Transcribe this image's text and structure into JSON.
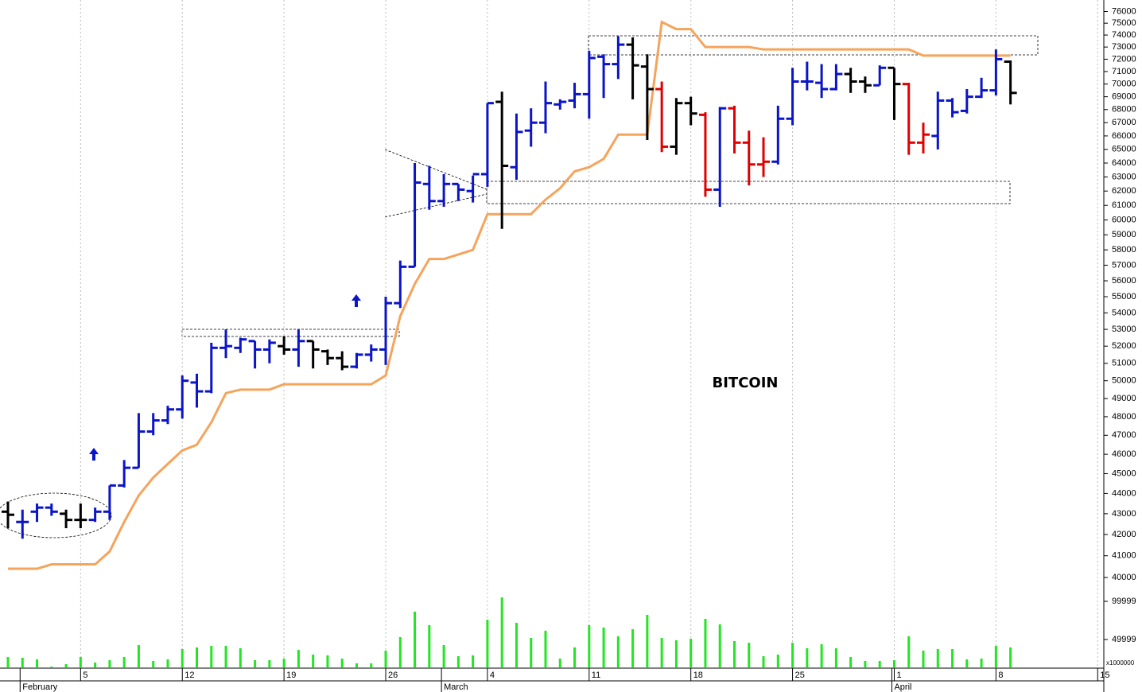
{
  "chart_data": {
    "type": "ohlc",
    "title": "BITCOIN",
    "log": true,
    "grid": true,
    "categories": [
      null,
      null,
      null,
      null,
      null,
      "5",
      null,
      null,
      null,
      null,
      null,
      null,
      "12",
      null,
      null,
      null,
      null,
      null,
      null,
      "19",
      null,
      null,
      null,
      null,
      null,
      null,
      "26",
      null,
      null,
      null,
      null,
      null,
      null,
      "4",
      null,
      null,
      null,
      null,
      null,
      null,
      "11",
      null,
      null,
      null,
      null,
      null,
      null,
      "18",
      null,
      null,
      null,
      null,
      null,
      null,
      "25",
      null,
      null,
      null,
      null,
      null,
      null,
      "1",
      null,
      null,
      null,
      null,
      null,
      null,
      "8",
      null,
      null,
      null,
      null,
      null,
      null,
      "15"
    ],
    "months": [
      null,
      "February",
      null,
      null,
      null,
      null,
      null,
      null,
      null,
      null,
      null,
      null,
      null,
      null,
      null,
      null,
      null,
      null,
      null,
      null,
      null,
      null,
      null,
      null,
      null,
      null,
      null,
      null,
      null,
      null,
      "March",
      null,
      null,
      null,
      null,
      null,
      null,
      null,
      null,
      null,
      null,
      null,
      null,
      null,
      null,
      null,
      null,
      null,
      null,
      null,
      null,
      null,
      null,
      null,
      null,
      null,
      null,
      null,
      null,
      null,
      null,
      "April",
      null,
      null,
      null,
      null,
      null,
      null,
      null,
      null,
      null,
      null,
      null,
      null,
      null,
      null
    ],
    "open": [
      43100,
      42600,
      43100,
      43300,
      43000,
      42700,
      42700,
      43100,
      44400,
      45300,
      47200,
      47800,
      48400,
      49900,
      49400,
      51900,
      51900,
      52300,
      51800,
      52000,
      51800,
      52300,
      51700,
      51300,
      50800,
      51500,
      51800,
      54600,
      56900,
      62500,
      61300,
      62500,
      62000,
      63200,
      68600,
      63700,
      66400,
      67000,
      68400,
      68700,
      69200,
      72200,
      71600,
      73200,
      71400,
      69600,
      65200,
      68500,
      67600,
      62100,
      68100,
      65500,
      63900,
      64100,
      67300,
      70200,
      70100,
      69600,
      70800,
      70200,
      69900,
      71300,
      70000,
      65500,
      66000,
      68700,
      67900,
      69000,
      69500,
      71800,
      null,
      null,
      null,
      null,
      null,
      null
    ],
    "high": [
      43600,
      43200,
      43500,
      43500,
      43200,
      43500,
      43300,
      44400,
      45700,
      48200,
      48200,
      48600,
      50300,
      50400,
      52200,
      53000,
      52500,
      52300,
      52400,
      52600,
      53000,
      52300,
      51800,
      51700,
      51600,
      52100,
      55000,
      57300,
      64000,
      63800,
      63200,
      62500,
      63100,
      68500,
      69400,
      67700,
      68100,
      70200,
      68800,
      70100,
      72700,
      72400,
      73900,
      73800,
      72400,
      70200,
      68900,
      69000,
      67800,
      68200,
      68300,
      66400,
      65900,
      68300,
      71300,
      71800,
      71600,
      71600,
      71300,
      70600,
      71500,
      71300,
      70100,
      67000,
      69400,
      68900,
      69600,
      70500,
      72800,
      71900,
      null,
      null,
      null,
      null,
      null,
      null
    ],
    "low": [
      42300,
      41800,
      42600,
      42900,
      42300,
      42300,
      42600,
      42700,
      44300,
      45300,
      47000,
      47600,
      47900,
      48500,
      49300,
      51300,
      51600,
      50700,
      51000,
      51500,
      50800,
      50700,
      50900,
      50600,
      50700,
      51100,
      50900,
      54300,
      56900,
      60700,
      60900,
      61300,
      61200,
      62300,
      59400,
      62800,
      65200,
      66200,
      68000,
      68100,
      67300,
      68900,
      70400,
      68800,
      65700,
      64800,
      64600,
      66800,
      61600,
      60900,
      64700,
      62400,
      63000,
      63900,
      66800,
      69500,
      68900,
      69500,
      69300,
      69300,
      69900,
      67200,
      64600,
      64700,
      65000,
      67400,
      67700,
      68900,
      69100,
      68400,
      null,
      null,
      null,
      null,
      null,
      null
    ],
    "close": [
      42950,
      42600,
      43300,
      43100,
      42700,
      42700,
      43100,
      44400,
      45300,
      47200,
      47800,
      48400,
      50000,
      49400,
      51900,
      52000,
      52400,
      51800,
      52200,
      51800,
      52300,
      51800,
      51300,
      50800,
      51500,
      51800,
      54600,
      56900,
      62600,
      61300,
      62500,
      62100,
      63200,
      68500,
      63800,
      66300,
      67000,
      68500,
      68600,
      69200,
      72100,
      71600,
      73200,
      71500,
      69600,
      65200,
      68500,
      67700,
      62100,
      68100,
      65500,
      63900,
      64100,
      67300,
      70200,
      70200,
      69600,
      70800,
      70200,
      69900,
      71300,
      70000,
      65500,
      66100,
      68700,
      67800,
      69000,
      69500,
      72000,
      69300,
      null,
      null,
      null,
      null,
      null,
      null
    ],
    "bar_colors": [
      "#000000",
      "#0a14c8",
      "#0a14c8",
      "#0a14c8",
      "#000000",
      "#000000",
      "#0a14c8",
      "#0a14c8",
      "#0a14c8",
      "#0a14c8",
      "#0a14c8",
      "#0a14c8",
      "#0a14c8",
      "#0a14c8",
      "#0a14c8",
      "#0a14c8",
      "#0a14c8",
      "#0a14c8",
      "#0a14c8",
      "#000000",
      "#0a14c8",
      "#000000",
      "#000000",
      "#000000",
      "#0a14c8",
      "#0a14c8",
      "#0a14c8",
      "#0a14c8",
      "#0a14c8",
      "#0a14c8",
      "#0a14c8",
      "#0a14c8",
      "#0a14c8",
      "#0a14c8",
      "#000000",
      "#0a14c8",
      "#0a14c8",
      "#0a14c8",
      "#0a14c8",
      "#0a14c8",
      "#0a14c8",
      "#0a14c8",
      "#0a14c8",
      "#000000",
      "#000000",
      "#e00000",
      "#000000",
      "#000000",
      "#e00000",
      "#0a14c8",
      "#e00000",
      "#e00000",
      "#e00000",
      "#0a14c8",
      "#0a14c8",
      "#0a14c8",
      "#0a14c8",
      "#0a14c8",
      "#000000",
      "#000000",
      "#0a14c8",
      "#000000",
      "#e00000",
      "#e00000",
      "#0a14c8",
      "#0a14c8",
      "#0a14c8",
      "#0a14c8",
      "#0a14c8",
      "#000000",
      null,
      null,
      null,
      null,
      null,
      null
    ],
    "ylim": [
      39500,
      77000
    ],
    "yticks": [
      40000,
      41000,
      42000,
      43000,
      44000,
      45000,
      46000,
      47000,
      48000,
      49000,
      50000,
      51000,
      52000,
      53000,
      54000,
      55000,
      56000,
      57000,
      58000,
      59000,
      60000,
      61000,
      62000,
      63000,
      64000,
      65000,
      66000,
      67000,
      68000,
      69000,
      70000,
      71000,
      72000,
      73000,
      74000,
      75000,
      76000
    ],
    "line": {
      "color": "#f5a45c",
      "values": [
        40400,
        40400,
        40400,
        40600,
        40600,
        40600,
        40600,
        41200,
        42600,
        43900,
        44800,
        45500,
        46200,
        46500,
        47700,
        49300,
        49500,
        49500,
        49500,
        49800,
        49800,
        49800,
        49800,
        49800,
        49800,
        49800,
        50300,
        53800,
        55800,
        57400,
        57400,
        57700,
        58000,
        60400,
        60400,
        60400,
        60400,
        61400,
        62200,
        63400,
        63700,
        64300,
        66100,
        66100,
        66100,
        75100,
        74500,
        74500,
        73000,
        73000,
        73000,
        73000,
        72800,
        72800,
        72800,
        72800,
        72800,
        72800,
        72800,
        72800,
        72800,
        72800,
        72800,
        72300,
        72300,
        72300,
        72300,
        72300,
        72300,
        72300,
        null,
        null,
        null,
        null,
        null,
        null
      ]
    },
    "volume": {
      "color": "#22e622",
      "unit": "x1000000",
      "ylim": [
        13500,
        111500
      ],
      "yticks": [
        49999,
        99999
      ],
      "values": [
        27100,
        26000,
        24000,
        14600,
        17700,
        27100,
        19800,
        22900,
        27100,
        42700,
        21900,
        24000,
        37500,
        39600,
        41700,
        41700,
        38500,
        22900,
        22900,
        25000,
        36500,
        30200,
        29200,
        25000,
        18800,
        18800,
        35400,
        53100,
        86500,
        68800,
        42700,
        28100,
        29200,
        76000,
        105200,
        71900,
        52100,
        61500,
        25000,
        39600,
        68800,
        65600,
        54200,
        63500,
        82300,
        52100,
        49000,
        51000,
        77100,
        69800,
        47900,
        45800,
        28100,
        30200,
        45800,
        38500,
        43800,
        38500,
        27100,
        21900,
        21900,
        22900,
        54200,
        35400,
        37500,
        37500,
        24000,
        25000,
        41700,
        39600,
        null,
        null,
        null,
        null,
        null,
        null
      ]
    }
  }
}
